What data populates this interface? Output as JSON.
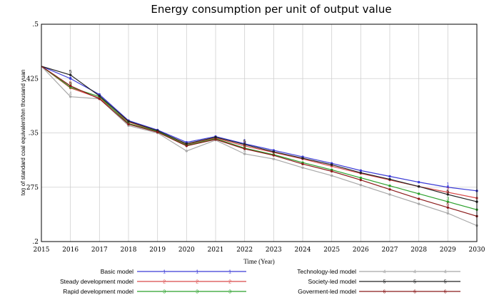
{
  "chart_data": {
    "type": "line",
    "title": "Energy consumption per unit of output value",
    "xlabel": "Time (Year)",
    "ylabel": "ton of standard coal equivalent/ten thousand yuan",
    "x": [
      2015,
      2016,
      2017,
      2018,
      2019,
      2020,
      2021,
      2022,
      2023,
      2024,
      2025,
      2026,
      2027,
      2028,
      2029,
      2030
    ],
    "xlim": [
      2015,
      2030
    ],
    "ylim": [
      0.2,
      0.5
    ],
    "yticks": [
      0.2,
      0.275,
      0.35,
      0.425,
      0.5
    ],
    "ytick_labels": [
      ".2",
      ".275",
      ".35",
      ".425",
      ".5"
    ],
    "grid": true,
    "legend_position": "bottom",
    "series": [
      {
        "name": "Basic model",
        "marker": "1",
        "color": "#3b3bd6",
        "values": [
          0.442,
          0.425,
          0.403,
          0.367,
          0.354,
          0.337,
          0.345,
          0.335,
          0.326,
          0.317,
          0.308,
          0.298,
          0.29,
          0.282,
          0.275,
          0.27
        ]
      },
      {
        "name": "Steady development model",
        "marker": "2",
        "color": "#d94a4a",
        "values": [
          0.442,
          0.412,
          0.398,
          0.365,
          0.352,
          0.334,
          0.343,
          0.332,
          0.323,
          0.314,
          0.304,
          0.294,
          0.285,
          0.276,
          0.268,
          0.26
        ]
      },
      {
        "name": "Rapid development model",
        "marker": "3",
        "color": "#2aa02a",
        "values": [
          0.442,
          0.413,
          0.4,
          0.363,
          0.352,
          0.333,
          0.342,
          0.329,
          0.32,
          0.309,
          0.299,
          0.288,
          0.277,
          0.266,
          0.255,
          0.244
        ]
      },
      {
        "name": "Technology-led model",
        "marker": "4",
        "color": "#a8a8a8",
        "values": [
          0.442,
          0.4,
          0.397,
          0.36,
          0.35,
          0.325,
          0.34,
          0.321,
          0.314,
          0.302,
          0.291,
          0.278,
          0.265,
          0.252,
          0.239,
          0.222
        ]
      },
      {
        "name": "Society-led model",
        "marker": "5",
        "color": "#222222",
        "values": [
          0.442,
          0.43,
          0.401,
          0.366,
          0.353,
          0.335,
          0.344,
          0.334,
          0.324,
          0.315,
          0.306,
          0.295,
          0.286,
          0.276,
          0.265,
          0.255
        ]
      },
      {
        "name": "Goverment-led model",
        "marker": "6",
        "color": "#8b1a1a",
        "values": [
          0.442,
          0.415,
          0.397,
          0.362,
          0.351,
          0.332,
          0.341,
          0.328,
          0.319,
          0.307,
          0.297,
          0.285,
          0.272,
          0.259,
          0.247,
          0.235
        ]
      }
    ]
  }
}
